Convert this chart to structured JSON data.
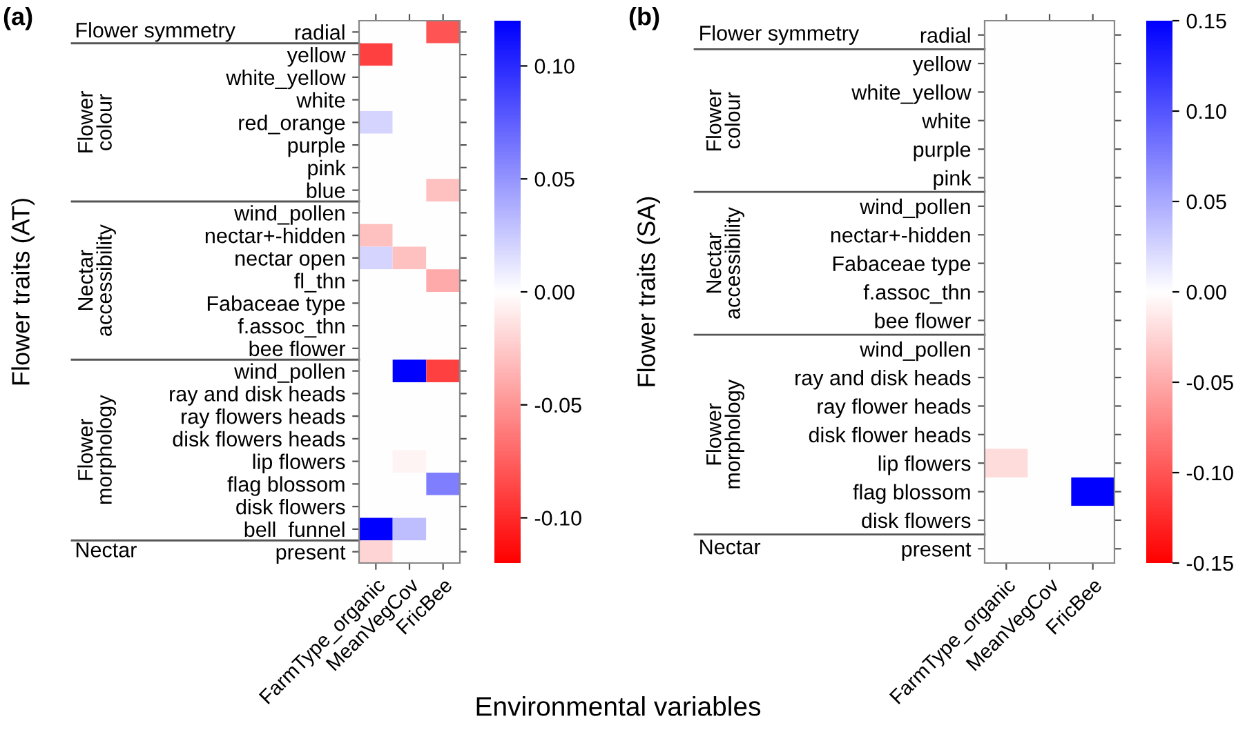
{
  "chart_data": [
    {
      "type": "heatmap",
      "title": "(a)",
      "ylabel": "Flower traits (AT)",
      "xlabel": "Environmental variables",
      "categories": [
        "FarmType_organic",
        "MeanVegCov",
        "FricBee"
      ],
      "y_categories": [
        "radial",
        "yellow",
        "white_yellow",
        "white",
        "red_orange",
        "purple",
        "pink",
        "blue",
        "wind_pollen",
        "nectar+-hidden",
        "nectar open",
        "fl_thn",
        "Fabaceae type",
        "f.assoc_thn",
        "bee flower",
        "wind_pollen",
        "ray and disk heads",
        "ray flowers heads",
        "disk flowers heads",
        "lip flowers",
        "flag blossom",
        "disk flowers",
        "bell_funnel",
        "present"
      ],
      "cells": [
        [
          0,
          0,
          -0.08
        ],
        [
          -0.09,
          0,
          0
        ],
        [
          0,
          0,
          0
        ],
        [
          0,
          0,
          0
        ],
        [
          0.02,
          0,
          0
        ],
        [
          0,
          0,
          0
        ],
        [
          0,
          0,
          0
        ],
        [
          0,
          0,
          -0.03
        ],
        [
          0,
          0,
          0
        ],
        [
          -0.03,
          0,
          0
        ],
        [
          0.02,
          -0.03,
          0
        ],
        [
          0,
          0,
          -0.04
        ],
        [
          0,
          0,
          0
        ],
        [
          0,
          0,
          0
        ],
        [
          0,
          0,
          0
        ],
        [
          0,
          0.12,
          -0.09
        ],
        [
          0,
          0,
          0
        ],
        [
          0,
          0,
          0
        ],
        [
          0,
          0,
          0
        ],
        [
          0,
          -0.005,
          0
        ],
        [
          0,
          0,
          0.06
        ],
        [
          0,
          0,
          0
        ],
        [
          0.12,
          0.03,
          0
        ],
        [
          -0.02,
          0,
          0
        ]
      ],
      "colors": [
        "#ff0000",
        "#ffffff",
        "#0000ff"
      ],
      "clim": [
        -0.12,
        0.12
      ],
      "cticks": [
        {
          "value": -0.1,
          "label": "-0.10"
        },
        {
          "value": -0.05,
          "label": "-0.05"
        },
        {
          "value": 0,
          "label": "0.00"
        },
        {
          "value": 0.05,
          "label": "0.05"
        },
        {
          "value": 0.1,
          "label": "0.10"
        }
      ],
      "annotations": [
        "Flower symmetry",
        "Flower\ncolour",
        "Nectar\naccessibility",
        "Flower\nmorphology",
        "Nectar"
      ]
    },
    {
      "type": "heatmap",
      "title": "(b)",
      "ylabel": "Flower traits (SA)",
      "categories": [
        "FarmType_organic",
        "MeanVegCov",
        "FricBee"
      ],
      "y_categories": [
        "radial",
        "yellow",
        "white_yellow",
        "white",
        "purple",
        "pink",
        "wind_pollen",
        "nectar+-hidden",
        "Fabaceae type",
        "f.assoc_thn",
        "bee flower",
        "wind_pollen",
        "ray and disk heads",
        "ray flower heads",
        "disk flower heads",
        "lip flowers",
        "flag blossom",
        "disk flowers",
        "present"
      ],
      "cells": [
        [
          0,
          0,
          0
        ],
        [
          0,
          0,
          0
        ],
        [
          0,
          0,
          0
        ],
        [
          0,
          0,
          0
        ],
        [
          0,
          0,
          0
        ],
        [
          0,
          0,
          0
        ],
        [
          0,
          0,
          0
        ],
        [
          0,
          0,
          0
        ],
        [
          0,
          0,
          0
        ],
        [
          0,
          0,
          0
        ],
        [
          0,
          0,
          0
        ],
        [
          0,
          0,
          0
        ],
        [
          0,
          0,
          0
        ],
        [
          0,
          0,
          0
        ],
        [
          0,
          0,
          0
        ],
        [
          -0.02,
          0,
          0
        ],
        [
          0,
          0,
          0.15
        ],
        [
          0,
          0,
          0
        ],
        [
          0,
          0,
          0
        ]
      ],
      "colors": [
        "#ff0000",
        "#ffffff",
        "#0000ff"
      ],
      "clim": [
        -0.15,
        0.15
      ],
      "cticks": [
        {
          "value": -0.15,
          "label": "-0.15"
        },
        {
          "value": -0.1,
          "label": "-0.10"
        },
        {
          "value": -0.05,
          "label": "-0.05"
        },
        {
          "value": 0,
          "label": "0.00"
        },
        {
          "value": 0.05,
          "label": "0.05"
        },
        {
          "value": 0.1,
          "label": "0.10"
        },
        {
          "value": 0.15,
          "label": "0.15"
        }
      ],
      "annotations": [
        "Flower symmetry",
        "Flower\ncolour",
        "Nectar\naccessibility",
        "Flower\nmorphology",
        "Nectar"
      ]
    }
  ]
}
